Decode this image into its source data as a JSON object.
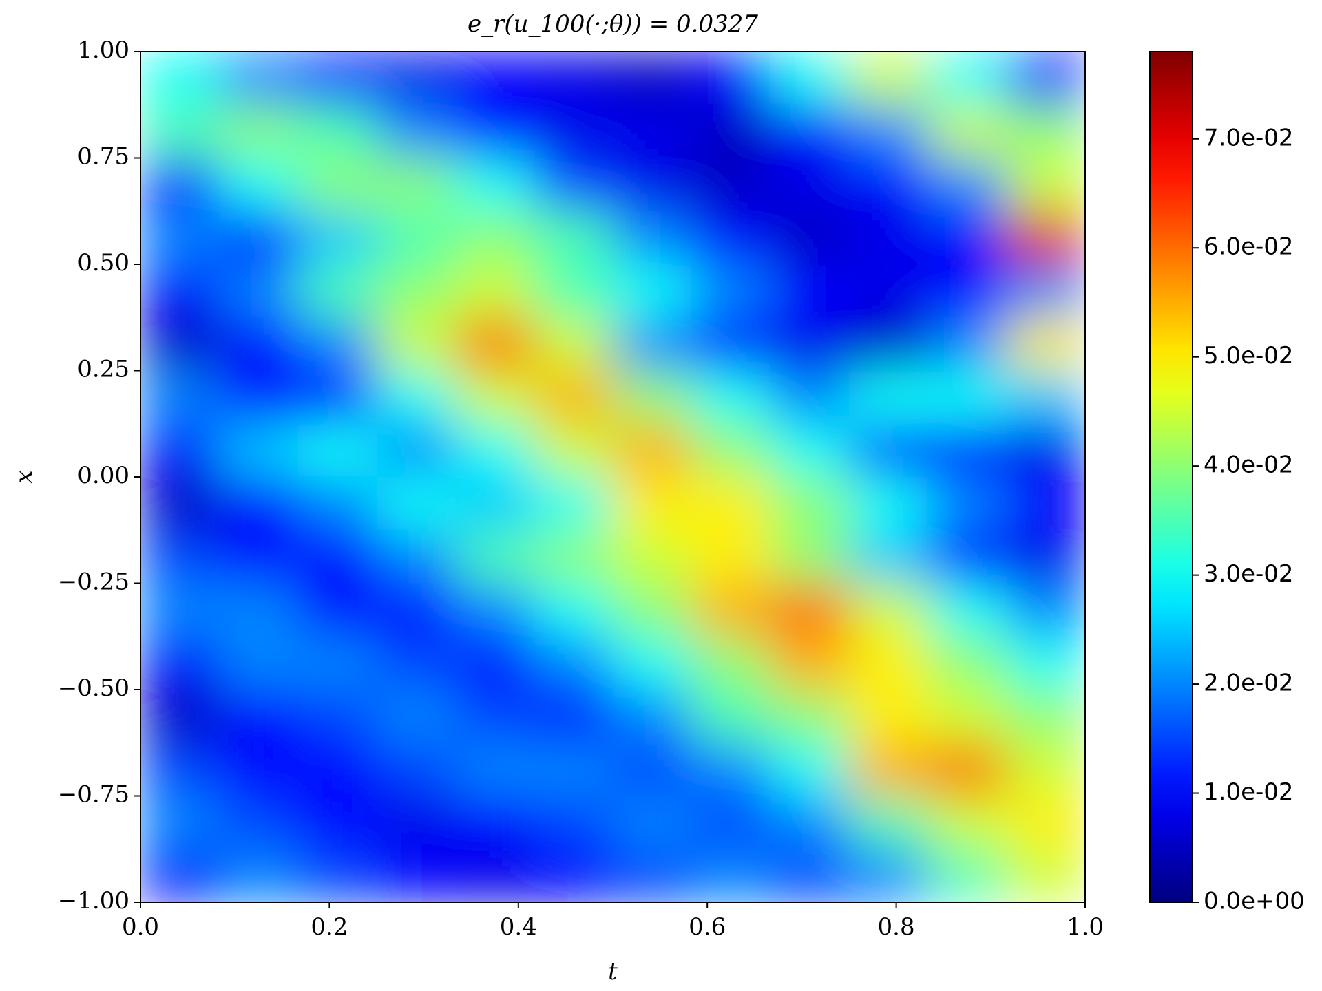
{
  "chart_data": {
    "type": "heatmap",
    "title": "e_r(u_100(·;θ)) = 0.0327",
    "xlabel": "t",
    "ylabel": "x",
    "xlim": [
      0,
      1
    ],
    "ylim": [
      -1,
      1
    ],
    "xticks": [
      {
        "value": 0,
        "label": "0.0"
      },
      {
        "value": 0.2,
        "label": "0.2"
      },
      {
        "value": 0.4,
        "label": "0.4"
      },
      {
        "value": 0.6,
        "label": "0.6"
      },
      {
        "value": 0.8,
        "label": "0.8"
      },
      {
        "value": 1,
        "label": "1.0"
      }
    ],
    "yticks": [
      {
        "value": 1,
        "label": "1.00"
      },
      {
        "value": 0.75,
        "label": "0.75"
      },
      {
        "value": 0.5,
        "label": "0.50"
      },
      {
        "value": 0.25,
        "label": "0.25"
      },
      {
        "value": 0,
        "label": "0.00"
      },
      {
        "value": -0.25,
        "label": "−0.25"
      },
      {
        "value": -0.5,
        "label": "−0.50"
      },
      {
        "value": -0.75,
        "label": "−0.75"
      },
      {
        "value": -1,
        "label": "−1.00"
      }
    ],
    "colormap": "jet",
    "zlim": [
      0,
      0.078
    ],
    "zticks": [
      {
        "value": 0,
        "label": "0.0e+00"
      },
      {
        "value": 0.01,
        "label": "1.0e-02"
      },
      {
        "value": 0.02,
        "label": "2.0e-02"
      },
      {
        "value": 0.03,
        "label": "3.0e-02"
      },
      {
        "value": 0.04,
        "label": "4.0e-02"
      },
      {
        "value": 0.05,
        "label": "5.0e-02"
      },
      {
        "value": 0.06,
        "label": "6.0e-02"
      },
      {
        "value": 0.07,
        "label": "7.0e-02"
      }
    ],
    "z": [
      [
        0.03,
        0.02,
        0.01,
        0.008,
        0.01,
        0.008,
        0.005,
        0.01,
        0.03,
        0.045,
        0.03,
        0.01
      ],
      [
        0.035,
        0.04,
        0.035,
        0.02,
        0.01,
        0.008,
        0.008,
        0.005,
        0.01,
        0.02,
        0.045,
        0.04
      ],
      [
        0.01,
        0.03,
        0.04,
        0.04,
        0.03,
        0.015,
        0.008,
        0.005,
        0.008,
        0.01,
        0.02,
        0.045
      ],
      [
        0.02,
        0.01,
        0.025,
        0.035,
        0.04,
        0.035,
        0.02,
        0.01,
        0.005,
        0.008,
        0.01,
        0.07
      ],
      [
        0.01,
        0.02,
        0.035,
        0.04,
        0.045,
        0.035,
        0.03,
        0.02,
        0.01,
        0.008,
        0.01,
        0.02
      ],
      [
        0.005,
        0.01,
        0.02,
        0.045,
        0.06,
        0.045,
        0.02,
        0.01,
        0.008,
        0.005,
        0.02,
        0.05
      ],
      [
        0.02,
        0.01,
        0.01,
        0.03,
        0.045,
        0.055,
        0.04,
        0.03,
        0.02,
        0.03,
        0.03,
        0.025
      ],
      [
        0.01,
        0.025,
        0.03,
        0.02,
        0.03,
        0.045,
        0.055,
        0.04,
        0.03,
        0.015,
        0.01,
        0.008
      ],
      [
        0.005,
        0.01,
        0.02,
        0.03,
        0.025,
        0.03,
        0.05,
        0.05,
        0.04,
        0.03,
        0.02,
        0.01
      ],
      [
        0.015,
        0.01,
        0.01,
        0.02,
        0.035,
        0.04,
        0.045,
        0.05,
        0.04,
        0.025,
        0.01,
        0.008
      ],
      [
        0.02,
        0.02,
        0.01,
        0.01,
        0.02,
        0.03,
        0.04,
        0.055,
        0.06,
        0.045,
        0.03,
        0.02
      ],
      [
        0.01,
        0.02,
        0.02,
        0.015,
        0.01,
        0.02,
        0.03,
        0.04,
        0.055,
        0.05,
        0.04,
        0.03
      ],
      [
        0.005,
        0.01,
        0.015,
        0.02,
        0.015,
        0.01,
        0.02,
        0.035,
        0.04,
        0.05,
        0.045,
        0.04
      ],
      [
        0.015,
        0.01,
        0.01,
        0.015,
        0.02,
        0.02,
        0.015,
        0.02,
        0.03,
        0.055,
        0.06,
        0.045
      ],
      [
        0.02,
        0.015,
        0.01,
        0.008,
        0.01,
        0.015,
        0.02,
        0.015,
        0.02,
        0.035,
        0.045,
        0.05
      ],
      [
        0.01,
        0.02,
        0.015,
        0.01,
        0.008,
        0.01,
        0.015,
        0.02,
        0.015,
        0.02,
        0.035,
        0.045
      ]
    ]
  }
}
